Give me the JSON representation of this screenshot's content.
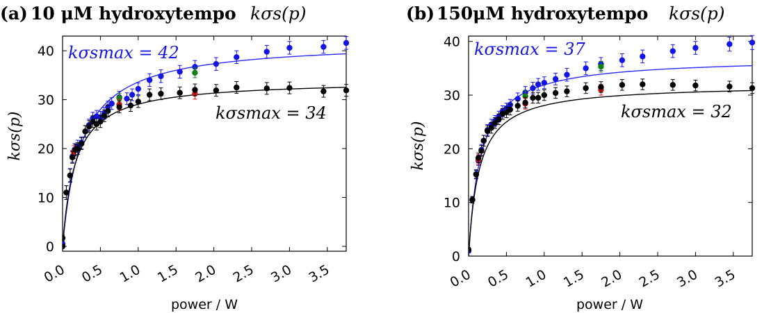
{
  "colors": {
    "blue": "#1414e6",
    "black": "#000000",
    "red": "#e01010",
    "green": "#108010",
    "fit_blue": "#2a2af0",
    "fit_black": "#000000"
  },
  "chart_data": [
    {
      "type": "scatter",
      "panel_label": "(a)",
      "title_bold": "10 μM hydroxytempo",
      "title_math": "kσs(p)",
      "xlabel": "power / W",
      "ylabel": "kσs(p)",
      "xlim": [
        0.0,
        3.75
      ],
      "ylim": [
        -1,
        43
      ],
      "xticks": [
        "0.0",
        "0.5",
        "1.0",
        "1.5",
        "2.0",
        "2.5",
        "3.0",
        "3.5"
      ],
      "yticks": [
        "0",
        "10",
        "20",
        "30",
        "40"
      ],
      "grid": false,
      "annotations": [
        {
          "text": "kσsmax = 42",
          "color": "blue"
        },
        {
          "text": "kσsmax = 34",
          "color": "black"
        }
      ],
      "fits": [
        {
          "color": "fit_blue",
          "smax": 42,
          "half": 0.25
        },
        {
          "color": "fit_black",
          "smax": 34,
          "half": 0.17
        }
      ],
      "series": [
        {
          "color": "blue",
          "points": [
            [
              0.0,
              0.5
            ],
            [
              0.05,
              11.0
            ],
            [
              0.1,
              14.5
            ],
            [
              0.13,
              18.4
            ],
            [
              0.16,
              19.8
            ],
            [
              0.2,
              20.5
            ],
            [
              0.25,
              21.2
            ],
            [
              0.3,
              23.5
            ],
            [
              0.35,
              24.8
            ],
            [
              0.4,
              26.2
            ],
            [
              0.45,
              26.6
            ],
            [
              0.5,
              26.4
            ],
            [
              0.55,
              27.2
            ],
            [
              0.6,
              28.5
            ],
            [
              0.65,
              29.2
            ],
            [
              0.75,
              30.5
            ],
            [
              0.85,
              30.2
            ],
            [
              0.92,
              31.0
            ],
            [
              1.0,
              32.2
            ],
            [
              1.15,
              34.0
            ],
            [
              1.3,
              34.8
            ],
            [
              1.55,
              35.7
            ],
            [
              1.75,
              36.7
            ],
            [
              2.03,
              37.3
            ],
            [
              2.3,
              38.7
            ],
            [
              2.7,
              39.8
            ],
            [
              3.0,
              40.6
            ],
            [
              3.45,
              40.8
            ],
            [
              3.75,
              41.6
            ]
          ],
          "errors": [
            0.4,
            1.4,
            1.4,
            1.2,
            1.2,
            1.2,
            1.2,
            1.2,
            1.2,
            1.2,
            1.2,
            1.2,
            1.2,
            1.2,
            1.2,
            1.2,
            1.2,
            1.2,
            1.2,
            1.3,
            1.3,
            1.3,
            1.3,
            1.3,
            1.3,
            1.3,
            1.3,
            1.3,
            1.3
          ]
        },
        {
          "color": "green",
          "points": [
            [
              0.75,
              30.3
            ],
            [
              1.75,
              35.5
            ]
          ],
          "errors": [
            1.0,
            1.0
          ]
        },
        {
          "color": "red",
          "points": [
            [
              0.15,
              19.3
            ],
            [
              0.75,
              29.0
            ],
            [
              1.75,
              31.2
            ]
          ],
          "errors": [
            1.3,
            1.1,
            1.1
          ]
        },
        {
          "color": "black",
          "points": [
            [
              0.0,
              0.0
            ],
            [
              0.0,
              1.7
            ],
            [
              0.05,
              11.0
            ],
            [
              0.1,
              14.5
            ],
            [
              0.13,
              18.2
            ],
            [
              0.17,
              19.7
            ],
            [
              0.2,
              20.0
            ],
            [
              0.25,
              21.0
            ],
            [
              0.3,
              23.5
            ],
            [
              0.35,
              24.5
            ],
            [
              0.4,
              25.5
            ],
            [
              0.45,
              25.0
            ],
            [
              0.5,
              25.5
            ],
            [
              0.55,
              26.7
            ],
            [
              0.6,
              27.7
            ],
            [
              0.75,
              28.5
            ],
            [
              0.9,
              28.8
            ],
            [
              1.0,
              29.6
            ],
            [
              1.15,
              31.0
            ],
            [
              1.3,
              31.2
            ],
            [
              1.55,
              31.4
            ],
            [
              1.75,
              32.0
            ],
            [
              2.03,
              31.9
            ],
            [
              2.3,
              32.5
            ],
            [
              2.7,
              32.3
            ],
            [
              3.0,
              32.4
            ],
            [
              3.45,
              31.7
            ],
            [
              3.75,
              31.9
            ]
          ],
          "errors": [
            0.4,
            0.6,
            1.4,
            1.3,
            1.2,
            1.2,
            1.2,
            1.2,
            1.2,
            1.2,
            1.2,
            1.2,
            1.2,
            1.2,
            1.2,
            1.2,
            1.2,
            1.2,
            1.2,
            1.2,
            1.2,
            1.2,
            1.2,
            1.2,
            1.2,
            1.2,
            1.2,
            1.2
          ]
        }
      ]
    },
    {
      "type": "scatter",
      "panel_label": "(b)",
      "title_bold": "150μM hydroxytempo",
      "title_math": "kσs(p)",
      "xlabel": "power / W",
      "ylabel": "kσs(p)",
      "xlim": [
        0.0,
        3.75
      ],
      "ylim": [
        0,
        41
      ],
      "xticks": [
        "0.0",
        "0.5",
        "1.0",
        "1.5",
        "2.0",
        "2.5",
        "3.0",
        "3.5"
      ],
      "yticks": [
        "0",
        "10",
        "20",
        "30",
        "40"
      ],
      "grid": false,
      "annotations": [
        {
          "text": "kσsmax = 37",
          "color": "blue"
        },
        {
          "text": "kσsmax = 32",
          "color": "black"
        }
      ],
      "fits": [
        {
          "color": "fit_blue",
          "smax": 37,
          "half": 0.16
        },
        {
          "color": "fit_black",
          "smax": 32,
          "half": 0.14
        }
      ],
      "series": [
        {
          "color": "blue",
          "points": [
            [
              0.0,
              1.0
            ],
            [
              0.05,
              10.5
            ],
            [
              0.1,
              15.3
            ],
            [
              0.13,
              17.8
            ],
            [
              0.17,
              19.8
            ],
            [
              0.2,
              21.5
            ],
            [
              0.25,
              23.5
            ],
            [
              0.3,
              24.5
            ],
            [
              0.35,
              25.2
            ],
            [
              0.4,
              26.0
            ],
            [
              0.45,
              27.0
            ],
            [
              0.5,
              27.5
            ],
            [
              0.55,
              28.2
            ],
            [
              0.65,
              29.3
            ],
            [
              0.75,
              30.5
            ],
            [
              0.85,
              31.3
            ],
            [
              0.92,
              32.0
            ],
            [
              1.0,
              32.3
            ],
            [
              1.15,
              33.0
            ],
            [
              1.3,
              33.8
            ],
            [
              1.55,
              35.0
            ],
            [
              1.75,
              35.8
            ],
            [
              2.03,
              36.5
            ],
            [
              2.3,
              37.2
            ],
            [
              2.7,
              38.2
            ],
            [
              3.0,
              38.8
            ],
            [
              3.45,
              39.5
            ],
            [
              3.75,
              39.8
            ]
          ],
          "errors": [
            0.4,
            0.6,
            0.8,
            0.9,
            1.0,
            1.0,
            1.0,
            1.0,
            1.0,
            1.0,
            1.0,
            1.0,
            1.0,
            1.1,
            1.1,
            1.1,
            1.1,
            1.1,
            1.1,
            1.2,
            1.2,
            1.2,
            1.2,
            1.2,
            1.2,
            1.2,
            1.3,
            1.3
          ]
        },
        {
          "color": "green",
          "points": [
            [
              0.75,
              29.8
            ],
            [
              1.75,
              35.3
            ]
          ],
          "errors": [
            1.0,
            1.0
          ]
        },
        {
          "color": "red",
          "points": [
            [
              0.13,
              18.0
            ],
            [
              0.75,
              28.4
            ],
            [
              1.75,
              31.0
            ]
          ],
          "errors": [
            0.9,
            1.0,
            1.0
          ]
        },
        {
          "color": "black",
          "points": [
            [
              0.0,
              1.2
            ],
            [
              0.05,
              10.5
            ],
            [
              0.1,
              15.2
            ],
            [
              0.13,
              18.3
            ],
            [
              0.17,
              19.6
            ],
            [
              0.2,
              21.5
            ],
            [
              0.25,
              23.3
            ],
            [
              0.3,
              23.9
            ],
            [
              0.35,
              24.8
            ],
            [
              0.4,
              25.5
            ],
            [
              0.45,
              26.5
            ],
            [
              0.5,
              26.8
            ],
            [
              0.55,
              27.3
            ],
            [
              0.65,
              28.0
            ],
            [
              0.75,
              28.6
            ],
            [
              0.85,
              29.5
            ],
            [
              0.92,
              29.5
            ],
            [
              1.0,
              30.0
            ],
            [
              1.15,
              30.4
            ],
            [
              1.3,
              30.7
            ],
            [
              1.55,
              31.3
            ],
            [
              1.75,
              31.5
            ],
            [
              2.03,
              31.9
            ],
            [
              2.3,
              32.0
            ],
            [
              2.7,
              31.9
            ],
            [
              3.0,
              31.8
            ],
            [
              3.45,
              31.6
            ],
            [
              3.75,
              31.3
            ]
          ],
          "errors": [
            0.4,
            0.6,
            0.8,
            0.9,
            1.0,
            1.0,
            1.0,
            1.0,
            1.0,
            1.0,
            1.0,
            1.0,
            1.0,
            1.0,
            1.0,
            1.0,
            1.0,
            1.0,
            1.0,
            1.0,
            1.0,
            1.0,
            1.0,
            1.0,
            1.0,
            1.0,
            1.0,
            1.0
          ]
        }
      ]
    }
  ]
}
